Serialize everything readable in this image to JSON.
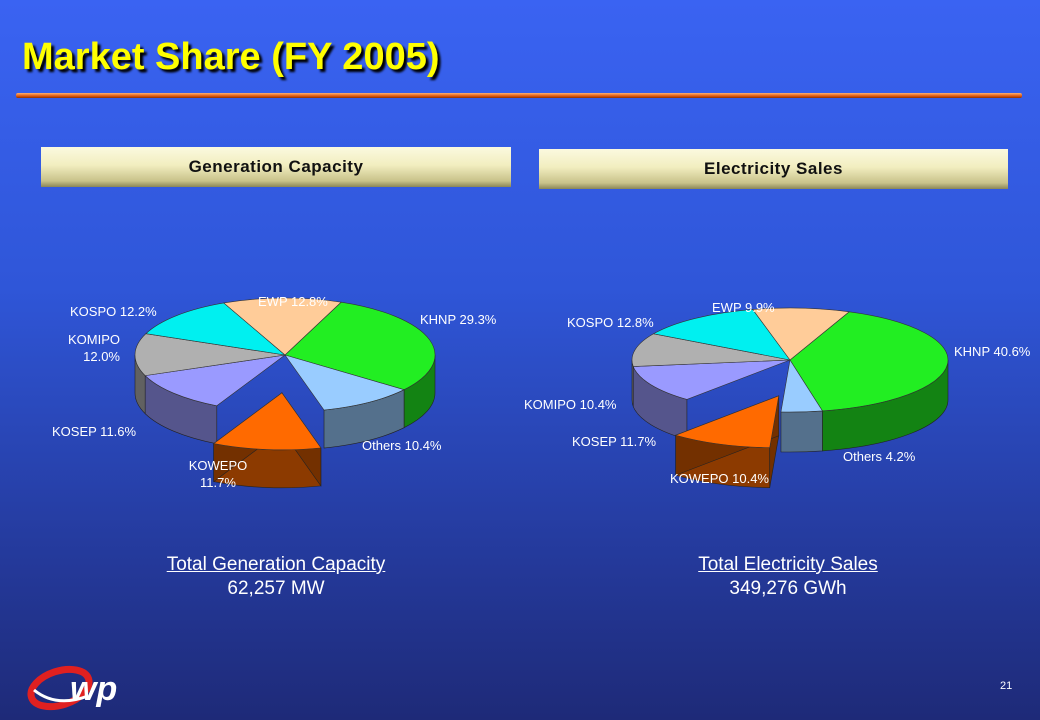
{
  "slide": {
    "title": "Market Share (FY 2005)",
    "page_number": "21"
  },
  "sections": {
    "left_header": "Generation Capacity",
    "right_header": "Electricity Sales"
  },
  "totals": {
    "left_caption": "Total Generation Capacity",
    "left_value": "62,257 MW",
    "right_caption": "Total Electricity Sales",
    "right_value": "349,276 GWh"
  },
  "colors": {
    "title": "#ffff00",
    "accent_rule": "#e05a10",
    "KHNP": "#22ee22",
    "Others": "#99ccff",
    "KOWEPO": "#ff6a00",
    "KOSEP": "#9a9aff",
    "KOMIPO": "#b0b0b0",
    "KOSPO": "#00f0f0",
    "EWP": "#ffcc99"
  },
  "logo": {
    "icon": "ewp-logo-icon",
    "text": "wp"
  },
  "chart_data": [
    {
      "type": "pie",
      "title": "Generation Capacity",
      "slices": [
        {
          "name": "KHNP",
          "value": 29.3,
          "label": "KHNP 29.3%"
        },
        {
          "name": "Others",
          "value": 10.4,
          "label": "Others 10.4%"
        },
        {
          "name": "KOWEPO",
          "value": 11.7,
          "label": "KOWEPO\n11.7%",
          "exploded": true
        },
        {
          "name": "KOSEP",
          "value": 11.6,
          "label": "KOSEP 11.6%"
        },
        {
          "name": "KOMIPO",
          "value": 12.0,
          "label": "KOMIPO\n12.0%"
        },
        {
          "name": "KOSPO",
          "value": 12.2,
          "label": "KOSPO 12.2%"
        },
        {
          "name": "EWP",
          "value": 12.8,
          "label": "EWP 12.8%"
        }
      ]
    },
    {
      "type": "pie",
      "title": "Electricity Sales",
      "slices": [
        {
          "name": "KHNP",
          "value": 40.6,
          "label": "KHNP 40.6%"
        },
        {
          "name": "Others",
          "value": 4.2,
          "label": "Others 4.2%"
        },
        {
          "name": "KOWEPO",
          "value": 10.4,
          "label": "KOWEPO 10.4%",
          "exploded": true
        },
        {
          "name": "KOSEP",
          "value": 11.7,
          "label": "KOSEP 11.7%"
        },
        {
          "name": "KOMIPO",
          "value": 10.4,
          "label": "KOMIPO 10.4%"
        },
        {
          "name": "KOSPO",
          "value": 12.8,
          "label": "KOSPO 12.8%"
        },
        {
          "name": "EWP",
          "value": 9.9,
          "label": "EWP 9.9%"
        }
      ]
    }
  ]
}
